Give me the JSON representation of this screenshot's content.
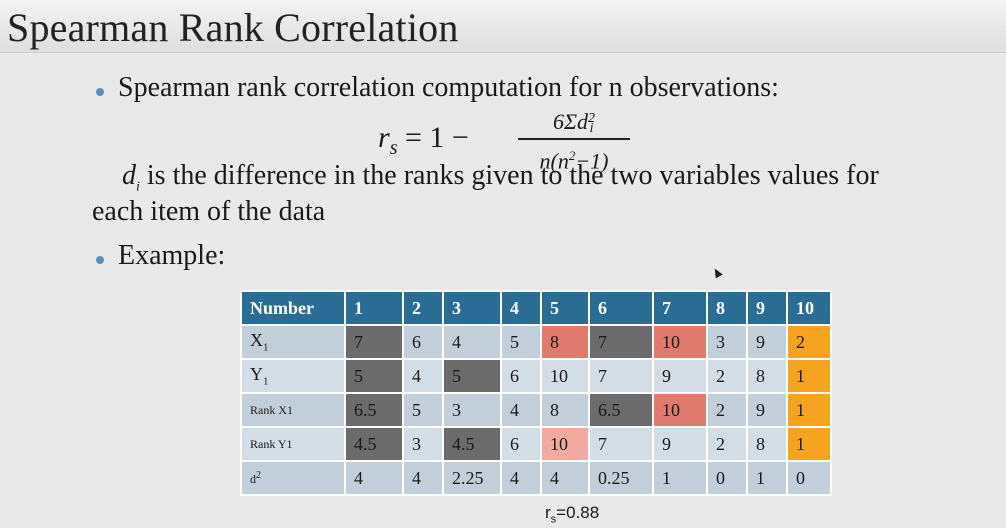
{
  "title": "Spearman Rank Correlation",
  "bullet1": "Spearman rank correlation computation for n observations:",
  "formula": {
    "lhs": "r",
    "lhs_sub": "s",
    "rhs": "= 1 −",
    "numerator": "6Σd",
    "numerator_sup": "2",
    "numerator_sub": "i",
    "denominator": "n(n",
    "denominator_sup": "2",
    "denominator_tail": "−1)"
  },
  "definition": {
    "var": "d",
    "var_sub": "i",
    "line1": " is the difference in the ranks given to the two variables values for",
    "line2": "each item of the data"
  },
  "bullet2": "Example:",
  "table": {
    "header": [
      "Number",
      "1",
      "2",
      "3",
      "4",
      "5",
      "6",
      "7",
      "8",
      "9",
      "10"
    ],
    "rows": [
      {
        "label": "X",
        "label_sub": "1",
        "values": [
          "7",
          "6",
          "4",
          "5",
          "8",
          "7",
          "10",
          "3",
          "9",
          "2"
        ]
      },
      {
        "label": "Y",
        "label_sub": "1",
        "values": [
          "5",
          "4",
          "5",
          "6",
          "10",
          "7",
          "9",
          "2",
          "8",
          "1"
        ]
      },
      {
        "label": "Rank X1",
        "label_sub": "",
        "values": [
          "6.5",
          "5",
          "3",
          "4",
          "8",
          "6.5",
          "10",
          "2",
          "9",
          "1"
        ]
      },
      {
        "label": "Rank Y1",
        "label_sub": "",
        "values": [
          "4.5",
          "3",
          "4.5",
          "6",
          "10",
          "7",
          "9",
          "2",
          "8",
          "1"
        ]
      },
      {
        "label": "d",
        "label_sup": "2",
        "values": [
          "4",
          "4",
          "2.25",
          "4",
          "4",
          "0.25",
          "1",
          "0",
          "1",
          "0"
        ]
      }
    ]
  },
  "result": {
    "prefix": "r",
    "sub": "s",
    "value": "=0.88"
  },
  "colors": {
    "header_bg": "#2b6c94",
    "row_bg": "#d3dde6",
    "highlight_dark": "#6b6b6b",
    "highlight_red": "#e07a6e",
    "highlight_pink": "#f2aaa0",
    "highlight_orange": "#f6a320",
    "bullet": "#5a8fb3"
  }
}
